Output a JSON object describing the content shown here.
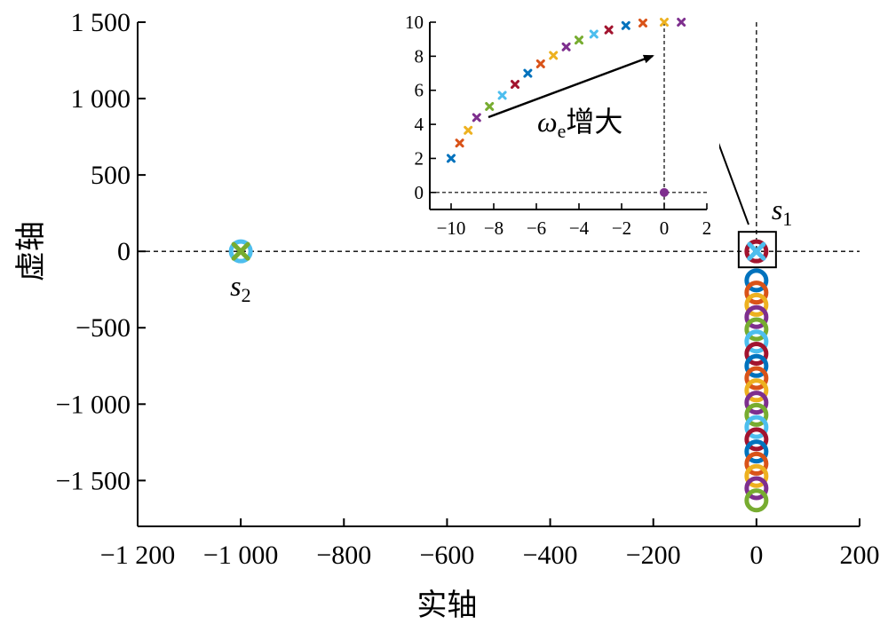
{
  "chart_data": [
    {
      "type": "scatter",
      "xlabel": "实轴",
      "ylabel": "虚轴",
      "xlim": [
        -1200,
        200
      ],
      "ylim": [
        -1800,
        1500
      ],
      "x_ticks": [
        -1200,
        -1000,
        -800,
        -600,
        -400,
        -200,
        0,
        200
      ],
      "x_tick_labels": [
        "−1 200",
        "−1 000",
        "−800",
        "−600",
        "−400",
        "−200",
        "0",
        "200"
      ],
      "y_ticks": [
        -1500,
        -1000,
        -500,
        0,
        500,
        1000,
        1500
      ],
      "y_tick_labels": [
        "−1 500",
        "−1 000",
        "−500",
        "0",
        "500",
        "1 000",
        "1 500"
      ],
      "grid": false,
      "reference_lines": {
        "horizontal_y": 0,
        "vertical_x": 0,
        "style": "dashed"
      },
      "series": [
        {
          "marker": "o",
          "points": [
            {
              "x": 0,
              "y": -190
            },
            {
              "x": 0,
              "y": -270
            },
            {
              "x": 0,
              "y": -350
            },
            {
              "x": 0,
              "y": -430
            },
            {
              "x": 0,
              "y": -510
            },
            {
              "x": 0,
              "y": -590
            },
            {
              "x": 0,
              "y": -670
            },
            {
              "x": 0,
              "y": -750
            },
            {
              "x": 0,
              "y": -830
            },
            {
              "x": 0,
              "y": -910
            },
            {
              "x": 0,
              "y": -990
            },
            {
              "x": 0,
              "y": -1070
            },
            {
              "x": 0,
              "y": -1150
            },
            {
              "x": 0,
              "y": -1230
            },
            {
              "x": 0,
              "y": -1310
            },
            {
              "x": 0,
              "y": -1390
            },
            {
              "x": 0,
              "y": -1470
            },
            {
              "x": 0,
              "y": -1550
            },
            {
              "x": 0,
              "y": -1630
            },
            {
              "x": -1000,
              "y": 0
            },
            {
              "x": 0,
              "y": 0
            }
          ]
        },
        {
          "marker": "x",
          "points": [
            {
              "x": -1000,
              "y": 0
            },
            {
              "x": 0,
              "y": 0
            }
          ]
        }
      ],
      "annotations": [
        {
          "text": "s",
          "subscript": "2",
          "x": -1000,
          "y": 0
        },
        {
          "text": "s",
          "subscript": "1",
          "x": 0,
          "y": 0
        }
      ]
    },
    {
      "type": "scatter",
      "role": "inset",
      "xlim": [
        -11,
        2
      ],
      "ylim": [
        -1,
        10
      ],
      "x_ticks": [
        -10,
        -8,
        -6,
        -4,
        -2,
        0,
        2
      ],
      "x_tick_labels": [
        "−10",
        "−8",
        "−6",
        "−4",
        "−2",
        "0",
        "2"
      ],
      "y_ticks": [
        0,
        2,
        4,
        6,
        8,
        10
      ],
      "y_tick_labels": [
        "0",
        "2",
        "4",
        "6",
        "8",
        "10"
      ],
      "reference_lines": {
        "horizontal_y": 0,
        "vertical_x": 0,
        "style": "dashed"
      },
      "series": [
        {
          "marker": "x",
          "points": [
            {
              "x": -10,
              "y": 2.0
            },
            {
              "x": -9.6,
              "y": 2.9
            },
            {
              "x": -9.2,
              "y": 3.65
            },
            {
              "x": -8.8,
              "y": 4.4
            },
            {
              "x": -8.2,
              "y": 5.05
            },
            {
              "x": -7.6,
              "y": 5.7
            },
            {
              "x": -7.0,
              "y": 6.35
            },
            {
              "x": -6.4,
              "y": 7.0
            },
            {
              "x": -5.8,
              "y": 7.55
            },
            {
              "x": -5.2,
              "y": 8.05
            },
            {
              "x": -4.6,
              "y": 8.55
            },
            {
              "x": -4.0,
              "y": 8.95
            },
            {
              "x": -3.3,
              "y": 9.3
            },
            {
              "x": -2.6,
              "y": 9.55
            },
            {
              "x": -1.8,
              "y": 9.8
            },
            {
              "x": -1.0,
              "y": 9.95
            },
            {
              "x": 0,
              "y": 10.0
            },
            {
              "x": 0.8,
              "y": 10.0
            }
          ]
        },
        {
          "marker": "o",
          "points": [
            {
              "x": 0,
              "y": 0
            }
          ]
        }
      ],
      "annotations": [
        {
          "text": "ω",
          "subscript": "e",
          "suffix": "增大"
        }
      ]
    }
  ],
  "colors": {
    "palette": [
      "#0072BD",
      "#D95319",
      "#EDB120",
      "#7E2F8E",
      "#77AC30",
      "#4DBEEE",
      "#A2142F"
    ],
    "axis": "#000000"
  }
}
